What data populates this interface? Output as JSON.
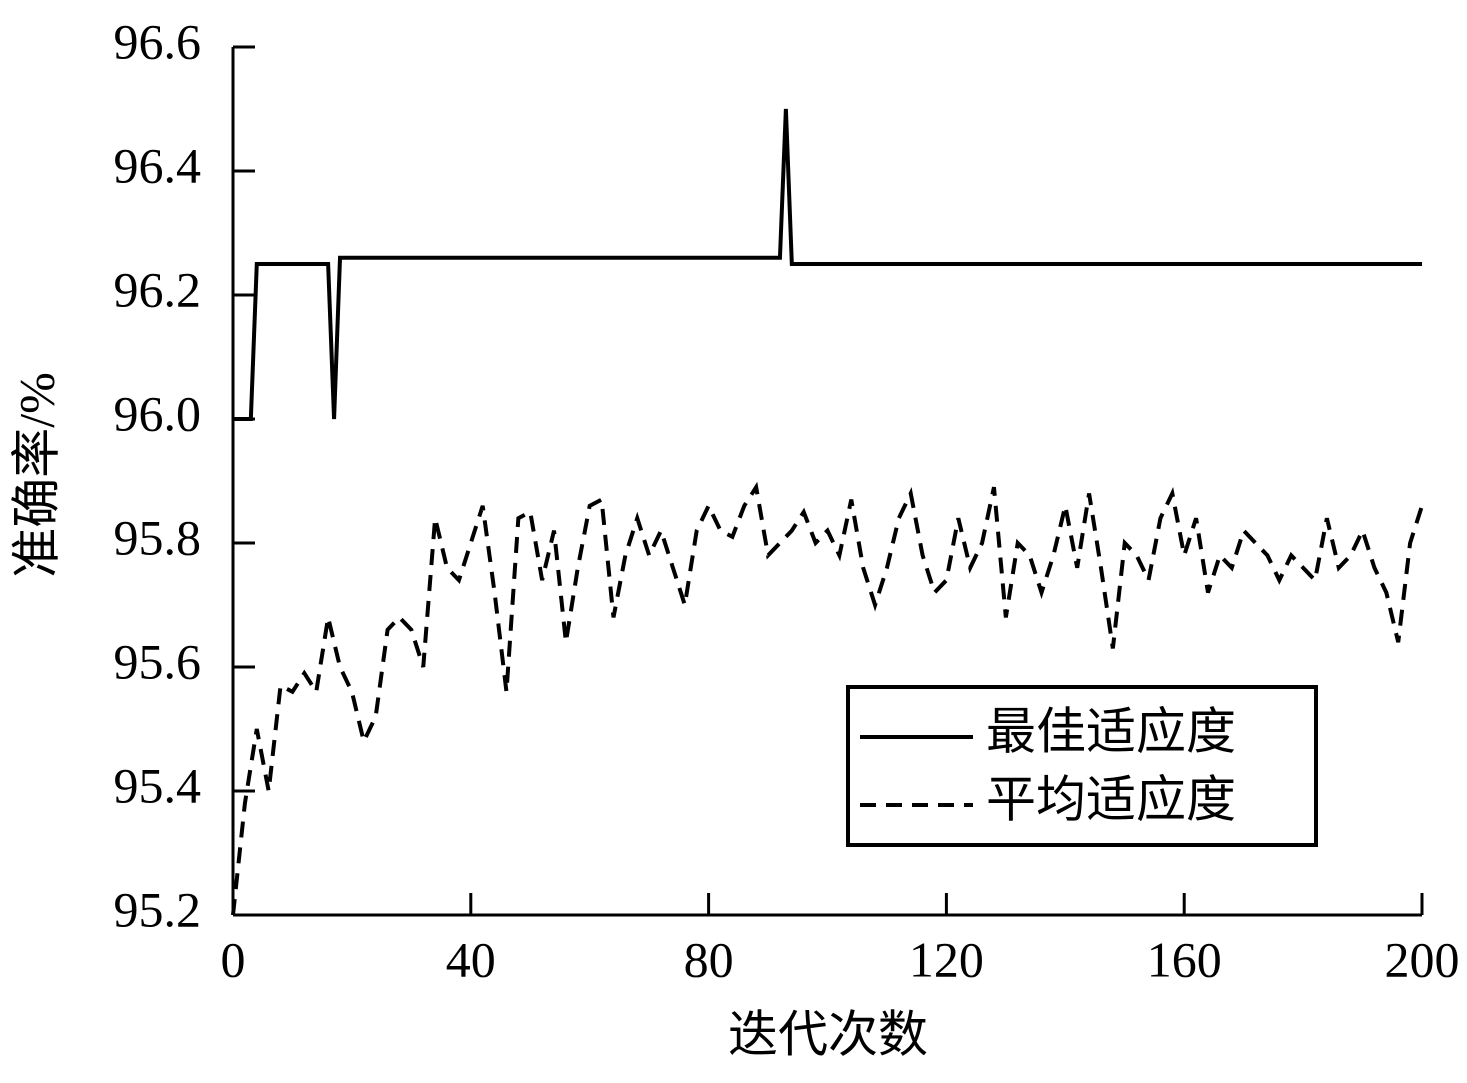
{
  "chart_data": {
    "type": "line",
    "xlabel": "迭代次数",
    "ylabel": "准确率/%",
    "xlim": [
      0,
      200
    ],
    "xticks": [
      0,
      40,
      80,
      120,
      160,
      200
    ],
    "ylim": [
      95.2,
      96.6
    ],
    "yticks": [
      95.2,
      95.4,
      95.6,
      95.8,
      {
        "value": 96.0,
        "label": "96.0"
      },
      96.2,
      96.4,
      96.6
    ],
    "legend": "lower right",
    "series": [
      {
        "name": "最佳适应度",
        "color": "#000000",
        "dash": "solid",
        "x": [
          0,
          3,
          4,
          16,
          17,
          18,
          92,
          93,
          94,
          200
        ],
        "values": [
          96.0,
          96.0,
          96.25,
          96.25,
          96.0,
          96.26,
          96.26,
          96.5,
          96.25,
          96.25
        ]
      },
      {
        "name": "平均适应度",
        "color": "#000000",
        "dash": "dashed",
        "x": [
          0,
          2,
          4,
          6,
          8,
          10,
          12,
          14,
          16,
          18,
          20,
          22,
          24,
          26,
          28,
          30,
          32,
          34,
          36,
          38,
          40,
          42,
          44,
          46,
          48,
          50,
          52,
          54,
          56,
          58,
          60,
          62,
          64,
          66,
          68,
          70,
          72,
          74,
          76,
          78,
          80,
          82,
          84,
          86,
          88,
          90,
          92,
          94,
          96,
          98,
          100,
          102,
          104,
          106,
          108,
          110,
          112,
          114,
          116,
          118,
          120,
          122,
          124,
          126,
          128,
          130,
          132,
          134,
          136,
          138,
          140,
          142,
          144,
          146,
          148,
          150,
          152,
          154,
          156,
          158,
          160,
          162,
          164,
          166,
          168,
          170,
          172,
          174,
          176,
          178,
          180,
          182,
          184,
          186,
          188,
          190,
          192,
          194,
          196,
          198,
          200
        ],
        "values": [
          95.2,
          95.38,
          95.5,
          95.4,
          95.57,
          95.56,
          95.59,
          95.56,
          95.68,
          95.6,
          95.56,
          95.48,
          95.52,
          95.66,
          95.68,
          95.66,
          95.6,
          95.84,
          95.76,
          95.74,
          95.8,
          95.86,
          95.72,
          95.56,
          95.84,
          95.85,
          95.74,
          95.82,
          95.64,
          95.76,
          95.86,
          95.87,
          95.68,
          95.78,
          95.84,
          95.78,
          95.82,
          95.76,
          95.7,
          95.82,
          95.86,
          95.82,
          95.81,
          95.86,
          95.89,
          95.78,
          95.8,
          95.82,
          95.85,
          95.8,
          95.82,
          95.78,
          95.87,
          95.76,
          95.7,
          95.76,
          95.84,
          95.88,
          95.78,
          95.72,
          95.74,
          95.84,
          95.76,
          95.8,
          95.89,
          95.68,
          95.8,
          95.78,
          95.72,
          95.78,
          95.86,
          95.76,
          95.88,
          95.76,
          95.63,
          95.8,
          95.78,
          95.74,
          95.84,
          95.88,
          95.78,
          95.84,
          95.72,
          95.78,
          95.76,
          95.82,
          95.8,
          95.78,
          95.74,
          95.78,
          95.76,
          95.74,
          95.84,
          95.76,
          95.78,
          95.82,
          95.76,
          95.72,
          95.64,
          95.8,
          95.86
        ]
      }
    ]
  }
}
